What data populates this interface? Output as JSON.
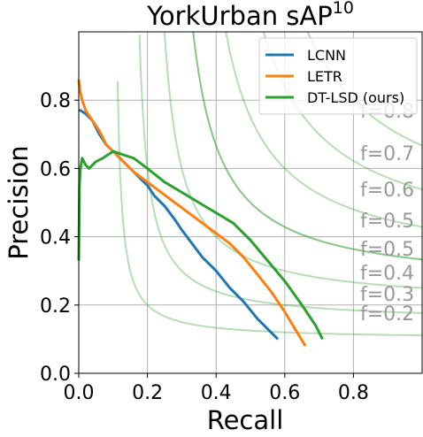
{
  "chart_data": {
    "type": "line",
    "title": "YorkUrban sAP",
    "title_superscript": "10",
    "xlabel": "Recall",
    "ylabel": "Precision",
    "xlim": [
      0,
      1
    ],
    "ylim": [
      0,
      1
    ],
    "grid": true,
    "xticks": [
      0.0,
      0.2,
      0.4,
      0.6,
      0.8
    ],
    "xtick_labels": [
      "0.0",
      "0.2",
      "0.4",
      "0.6",
      "0.8"
    ],
    "yticks": [
      0.0,
      0.2,
      0.4,
      0.6,
      0.8
    ],
    "ytick_labels": [
      "0.0",
      "0.2",
      "0.4",
      "0.6",
      "0.8"
    ],
    "legend_position": "top-right",
    "series": [
      {
        "name": "LCNN",
        "color": "#1f77b4",
        "x": [
          0.0,
          0.005,
          0.02,
          0.04,
          0.06,
          0.08,
          0.1,
          0.12,
          0.15,
          0.18,
          0.2,
          0.22,
          0.25,
          0.28,
          0.3,
          0.33,
          0.36,
          0.4,
          0.44,
          0.48,
          0.52,
          0.55,
          0.58
        ],
        "y": [
          0.77,
          0.77,
          0.76,
          0.74,
          0.7,
          0.67,
          0.65,
          0.63,
          0.6,
          0.57,
          0.55,
          0.52,
          0.49,
          0.45,
          0.42,
          0.38,
          0.34,
          0.3,
          0.25,
          0.21,
          0.16,
          0.13,
          0.1
        ]
      },
      {
        "name": "LETR",
        "color": "#ff7f0e",
        "x": [
          0.0,
          0.003,
          0.01,
          0.02,
          0.04,
          0.06,
          0.08,
          0.1,
          0.13,
          0.16,
          0.2,
          0.24,
          0.28,
          0.32,
          0.36,
          0.4,
          0.44,
          0.48,
          0.52,
          0.56,
          0.6,
          0.63,
          0.66
        ],
        "y": [
          0.86,
          0.83,
          0.8,
          0.77,
          0.74,
          0.71,
          0.67,
          0.65,
          0.62,
          0.59,
          0.56,
          0.53,
          0.5,
          0.47,
          0.44,
          0.41,
          0.38,
          0.34,
          0.29,
          0.24,
          0.18,
          0.13,
          0.08
        ]
      },
      {
        "name": "DT-LSD (ours)",
        "color": "#2ca02c",
        "x": [
          0.0,
          0.002,
          0.005,
          0.01,
          0.02,
          0.03,
          0.05,
          0.07,
          0.1,
          0.13,
          0.16,
          0.2,
          0.25,
          0.3,
          0.35,
          0.4,
          0.45,
          0.5,
          0.55,
          0.6,
          0.65,
          0.69,
          0.71
        ],
        "y": [
          0.33,
          0.55,
          0.6,
          0.63,
          0.61,
          0.6,
          0.62,
          0.63,
          0.65,
          0.64,
          0.63,
          0.6,
          0.56,
          0.53,
          0.5,
          0.47,
          0.44,
          0.39,
          0.33,
          0.27,
          0.2,
          0.14,
          0.1
        ]
      }
    ],
    "iso_f_curves": [
      {
        "f": 0.2,
        "label": "f=0.2"
      },
      {
        "f": 0.3,
        "label": "f=0.3"
      },
      {
        "f": 0.4,
        "label": "f=0.4"
      },
      {
        "f": 0.5,
        "label": "f=0.5"
      },
      {
        "f": 0.5,
        "label": "f=0.5"
      },
      {
        "f": 0.6,
        "label": "f=0.6"
      },
      {
        "f": 0.7,
        "label": "f=0.7"
      },
      {
        "f": 0.8,
        "label": "f=0.8"
      }
    ],
    "iso_f_color": "#2ca02c"
  }
}
